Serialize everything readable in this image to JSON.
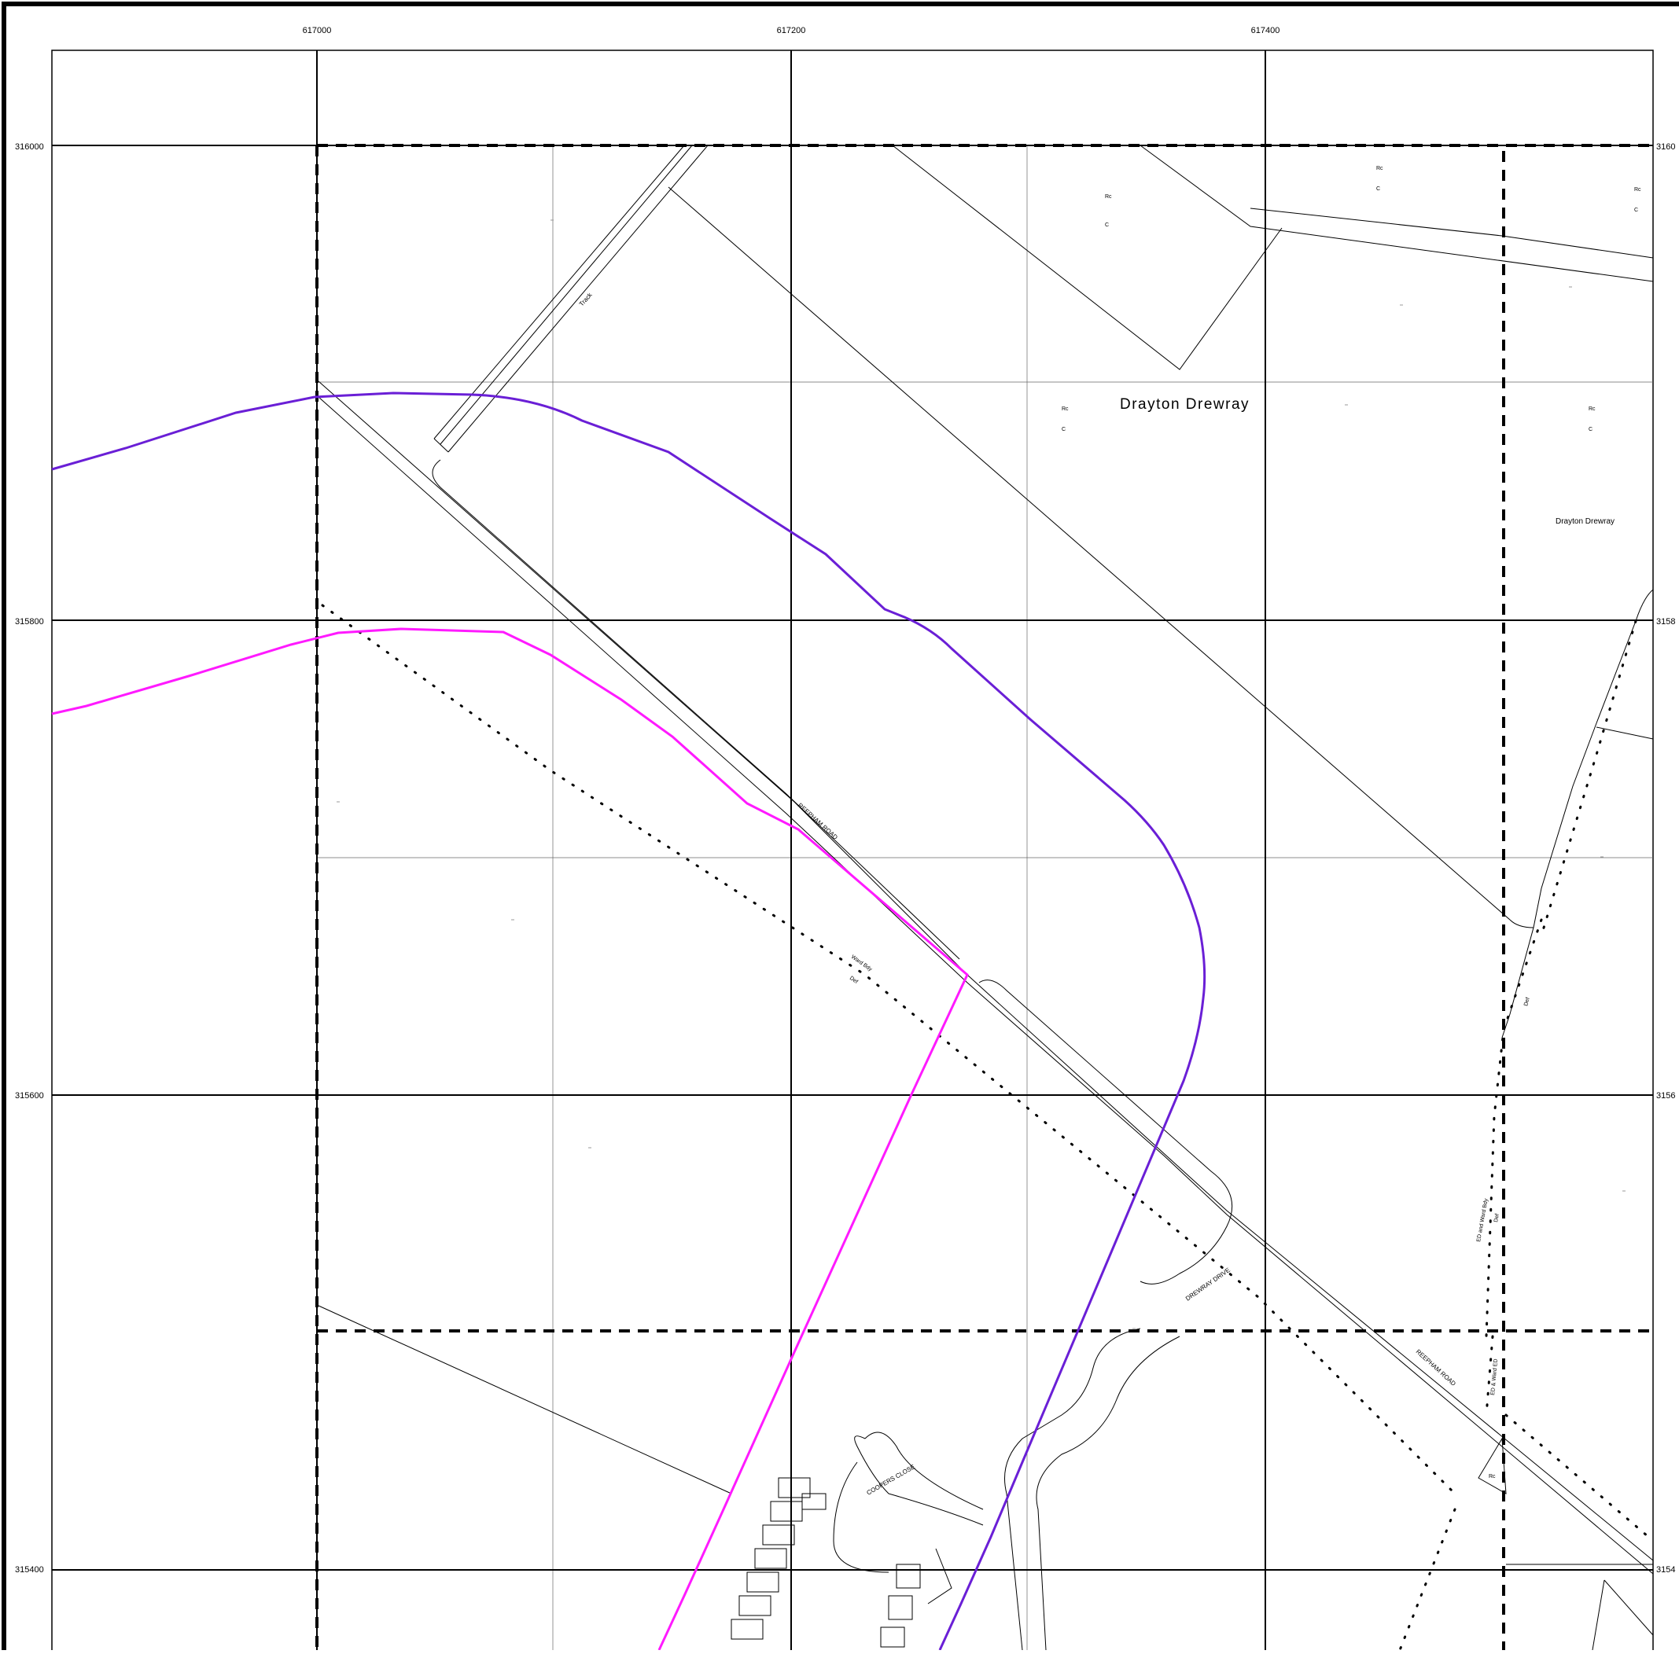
{
  "map": {
    "grid_eastings": [
      "617000",
      "617200",
      "617400"
    ],
    "grid_northings": [
      "316000",
      "315800",
      "315600",
      "315400"
    ],
    "grid_northings_clipped": [
      "3160",
      "3158",
      "3156",
      "3154"
    ],
    "place_labels": {
      "drayton_drewray_large": "Drayton Drewray",
      "drayton_drewray_small": "Drayton Drewray"
    },
    "road_labels": {
      "reepham_road_upper": "REEPHAM ROAD",
      "reepham_road_lower": "REEPHAM ROAD",
      "drewray_drive": "DREWRAY DRIVE",
      "coopers_close": "COOPERS CLOSE",
      "track": "Track"
    },
    "small_labels": {
      "ward_bdy": "Ward Bdy",
      "def": "Def",
      "ed_ward_bdy": "ED and Ward Bdy",
      "def_2": "Def",
      "def_3": "Def",
      "ed_ward_ed_2": "ED & Ward ED",
      "rc": "Rc",
      "c": "C"
    },
    "colors": {
      "boundary_purple": "#6a1fd6",
      "boundary_magenta": "#ff1aff",
      "frame": "#000000"
    }
  }
}
